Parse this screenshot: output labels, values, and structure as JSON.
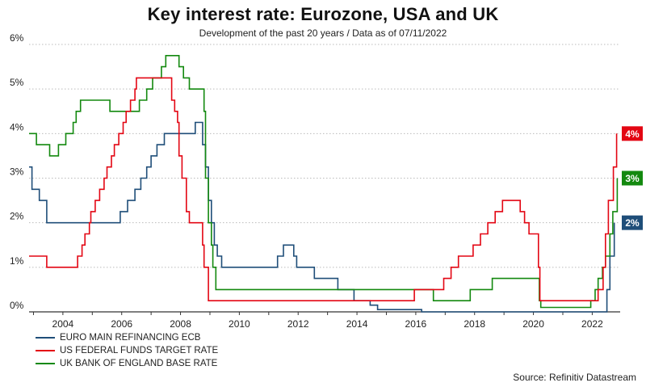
{
  "title": "Key interest rate: Eurozone, USA and UK",
  "subtitle": "Development of the past 20 years / Data as of 07/11/2022",
  "source": "Source: Refinitiv Datastream",
  "colors": {
    "ecb": "#1f4e79",
    "fed": "#e30613",
    "boe": "#13890f",
    "grid": "#bbbbbb",
    "axis": "#333333"
  },
  "chart_data": {
    "type": "line",
    "x_unit": "year",
    "xlim": [
      2002.85,
      2022.95
    ],
    "ylim": [
      0,
      6
    ],
    "x_ticks": [
      {
        "value": 2004,
        "label": "2004"
      },
      {
        "value": 2006,
        "label": "2006"
      },
      {
        "value": 2008,
        "label": "2008"
      },
      {
        "value": 2010,
        "label": "2010"
      },
      {
        "value": 2012,
        "label": "2012"
      },
      {
        "value": 2014,
        "label": "2014"
      },
      {
        "value": 2016,
        "label": "2016"
      },
      {
        "value": 2018,
        "label": "2018"
      },
      {
        "value": 2020,
        "label": "2020"
      },
      {
        "value": 2022,
        "label": "2022"
      }
    ],
    "y_ticks": [
      {
        "value": 0,
        "label": "0%"
      },
      {
        "value": 1,
        "label": "1%"
      },
      {
        "value": 2,
        "label": "2%"
      },
      {
        "value": 3,
        "label": "3%"
      },
      {
        "value": 4,
        "label": "4%"
      },
      {
        "value": 5,
        "label": "5%"
      },
      {
        "value": 6,
        "label": "6%"
      }
    ],
    "grid": true,
    "legend_position": "bottom-left",
    "series": [
      {
        "name": "EURO MAIN REFINANCING ECB",
        "color": "#1f4e79",
        "end_label": "2%",
        "points": [
          [
            2002.85,
            3.25
          ],
          [
            2002.95,
            2.75
          ],
          [
            2003.2,
            2.5
          ],
          [
            2003.45,
            2.0
          ],
          [
            2005.95,
            2.25
          ],
          [
            2006.2,
            2.5
          ],
          [
            2006.45,
            2.75
          ],
          [
            2006.65,
            3.0
          ],
          [
            2006.85,
            3.25
          ],
          [
            2007.0,
            3.5
          ],
          [
            2007.2,
            3.75
          ],
          [
            2007.45,
            4.0
          ],
          [
            2008.5,
            4.25
          ],
          [
            2008.75,
            3.75
          ],
          [
            2008.85,
            3.25
          ],
          [
            2008.95,
            2.5
          ],
          [
            2009.05,
            2.0
          ],
          [
            2009.15,
            1.5
          ],
          [
            2009.25,
            1.25
          ],
          [
            2009.4,
            1.0
          ],
          [
            2011.3,
            1.25
          ],
          [
            2011.5,
            1.5
          ],
          [
            2011.85,
            1.25
          ],
          [
            2011.95,
            1.0
          ],
          [
            2012.55,
            0.75
          ],
          [
            2013.35,
            0.5
          ],
          [
            2013.9,
            0.25
          ],
          [
            2014.45,
            0.15
          ],
          [
            2014.7,
            0.05
          ],
          [
            2016.2,
            0.0
          ],
          [
            2022.5,
            0.5
          ],
          [
            2022.6,
            1.25
          ],
          [
            2022.75,
            2.0
          ]
        ]
      },
      {
        "name": "US FEDERAL FUNDS TARGET RATE",
        "color": "#e30613",
        "end_label": "4%",
        "points": [
          [
            2002.85,
            1.25
          ],
          [
            2003.45,
            1.0
          ],
          [
            2004.5,
            1.25
          ],
          [
            2004.65,
            1.5
          ],
          [
            2004.75,
            1.75
          ],
          [
            2004.9,
            2.0
          ],
          [
            2004.95,
            2.25
          ],
          [
            2005.1,
            2.5
          ],
          [
            2005.25,
            2.75
          ],
          [
            2005.4,
            3.0
          ],
          [
            2005.5,
            3.25
          ],
          [
            2005.65,
            3.5
          ],
          [
            2005.75,
            3.75
          ],
          [
            2005.9,
            4.0
          ],
          [
            2006.05,
            4.25
          ],
          [
            2006.15,
            4.5
          ],
          [
            2006.3,
            4.75
          ],
          [
            2006.45,
            5.0
          ],
          [
            2006.5,
            5.25
          ],
          [
            2007.7,
            4.75
          ],
          [
            2007.8,
            4.5
          ],
          [
            2007.9,
            4.25
          ],
          [
            2007.95,
            3.5
          ],
          [
            2008.05,
            3.0
          ],
          [
            2008.2,
            2.25
          ],
          [
            2008.3,
            2.0
          ],
          [
            2008.75,
            1.5
          ],
          [
            2008.8,
            1.0
          ],
          [
            2008.95,
            0.25
          ],
          [
            2015.95,
            0.5
          ],
          [
            2016.95,
            0.75
          ],
          [
            2017.2,
            1.0
          ],
          [
            2017.45,
            1.25
          ],
          [
            2017.95,
            1.5
          ],
          [
            2018.2,
            1.75
          ],
          [
            2018.45,
            2.0
          ],
          [
            2018.7,
            2.25
          ],
          [
            2018.95,
            2.5
          ],
          [
            2019.55,
            2.25
          ],
          [
            2019.7,
            2.0
          ],
          [
            2019.85,
            1.75
          ],
          [
            2020.17,
            1.0
          ],
          [
            2020.22,
            0.25
          ],
          [
            2022.2,
            0.5
          ],
          [
            2022.37,
            1.0
          ],
          [
            2022.45,
            1.75
          ],
          [
            2022.55,
            2.5
          ],
          [
            2022.72,
            3.25
          ],
          [
            2022.83,
            4.0
          ]
        ]
      },
      {
        "name": "UK BANK OF ENGLAND BASE RATE",
        "color": "#13890f",
        "end_label": "3%",
        "points": [
          [
            2002.85,
            4.0
          ],
          [
            2003.1,
            3.75
          ],
          [
            2003.55,
            3.5
          ],
          [
            2003.85,
            3.75
          ],
          [
            2004.1,
            4.0
          ],
          [
            2004.35,
            4.25
          ],
          [
            2004.45,
            4.5
          ],
          [
            2004.6,
            4.75
          ],
          [
            2005.6,
            4.5
          ],
          [
            2006.6,
            4.75
          ],
          [
            2006.85,
            5.0
          ],
          [
            2007.05,
            5.25
          ],
          [
            2007.35,
            5.5
          ],
          [
            2007.5,
            5.75
          ],
          [
            2007.95,
            5.5
          ],
          [
            2008.1,
            5.25
          ],
          [
            2008.3,
            5.0
          ],
          [
            2008.8,
            4.5
          ],
          [
            2008.85,
            3.0
          ],
          [
            2008.95,
            2.0
          ],
          [
            2009.05,
            1.5
          ],
          [
            2009.1,
            1.0
          ],
          [
            2009.2,
            0.5
          ],
          [
            2016.6,
            0.25
          ],
          [
            2017.85,
            0.5
          ],
          [
            2018.6,
            0.75
          ],
          [
            2020.2,
            0.25
          ],
          [
            2020.25,
            0.1
          ],
          [
            2021.95,
            0.25
          ],
          [
            2022.1,
            0.5
          ],
          [
            2022.2,
            0.75
          ],
          [
            2022.35,
            1.0
          ],
          [
            2022.45,
            1.25
          ],
          [
            2022.6,
            1.75
          ],
          [
            2022.7,
            2.25
          ],
          [
            2022.85,
            3.0
          ]
        ]
      }
    ]
  }
}
